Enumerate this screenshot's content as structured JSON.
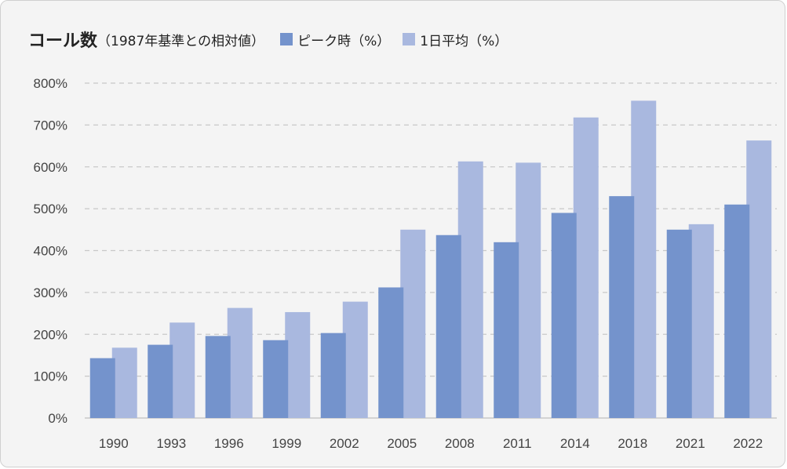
{
  "colors": {
    "peak": "#7493cc",
    "avg": "#a9b8df",
    "grid": "#c8c8c8",
    "text": "#444444"
  },
  "chart_data": {
    "type": "bar",
    "title": "コール数",
    "subtitle": "（1987年基準との相対値）",
    "categories": [
      "1990",
      "1993",
      "1996",
      "1999",
      "2002",
      "2005",
      "2008",
      "2011",
      "2014",
      "2018",
      "2021",
      "2022"
    ],
    "series": [
      {
        "name": "ピーク時（%）",
        "values": [
          143,
          175,
          196,
          186,
          203,
          312,
          437,
          420,
          490,
          530,
          450,
          510
        ]
      },
      {
        "name": "1日平均（%）",
        "values": [
          168,
          228,
          263,
          253,
          278,
          450,
          613,
          610,
          718,
          758,
          463,
          663
        ]
      }
    ],
    "ylim": [
      0,
      800
    ],
    "yticks": [
      "0%",
      "100%",
      "200%",
      "300%",
      "400%",
      "500%",
      "600%",
      "700%",
      "800%"
    ],
    "legend": "top",
    "grid": true
  }
}
